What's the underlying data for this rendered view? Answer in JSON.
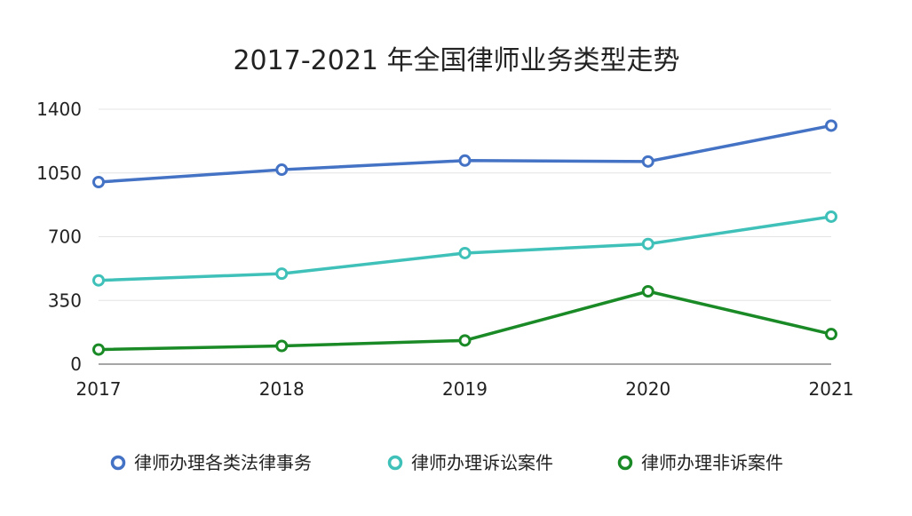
{
  "chart_data": {
    "type": "line",
    "title": "2017-2021 年全国律师业务类型走势",
    "x": [
      "2017",
      "2018",
      "2019",
      "2020",
      "2021"
    ],
    "ylim": [
      0,
      1400
    ],
    "yticks": [
      "0",
      "350",
      "700",
      "1050",
      "1400"
    ],
    "grid": true,
    "legend_position": "bottom",
    "series": [
      {
        "name": "律师办理各类法律事务",
        "color": "#4472c4",
        "values": [
          1000,
          1068,
          1118,
          1113,
          1310
        ]
      },
      {
        "name": "律师办理诉讼案件",
        "color": "#3fc1b9",
        "values": [
          460,
          497,
          610,
          660,
          810
        ]
      },
      {
        "name": "律师办理非诉案件",
        "color": "#1a8a27",
        "values": [
          80,
          100,
          130,
          400,
          165
        ]
      }
    ]
  }
}
